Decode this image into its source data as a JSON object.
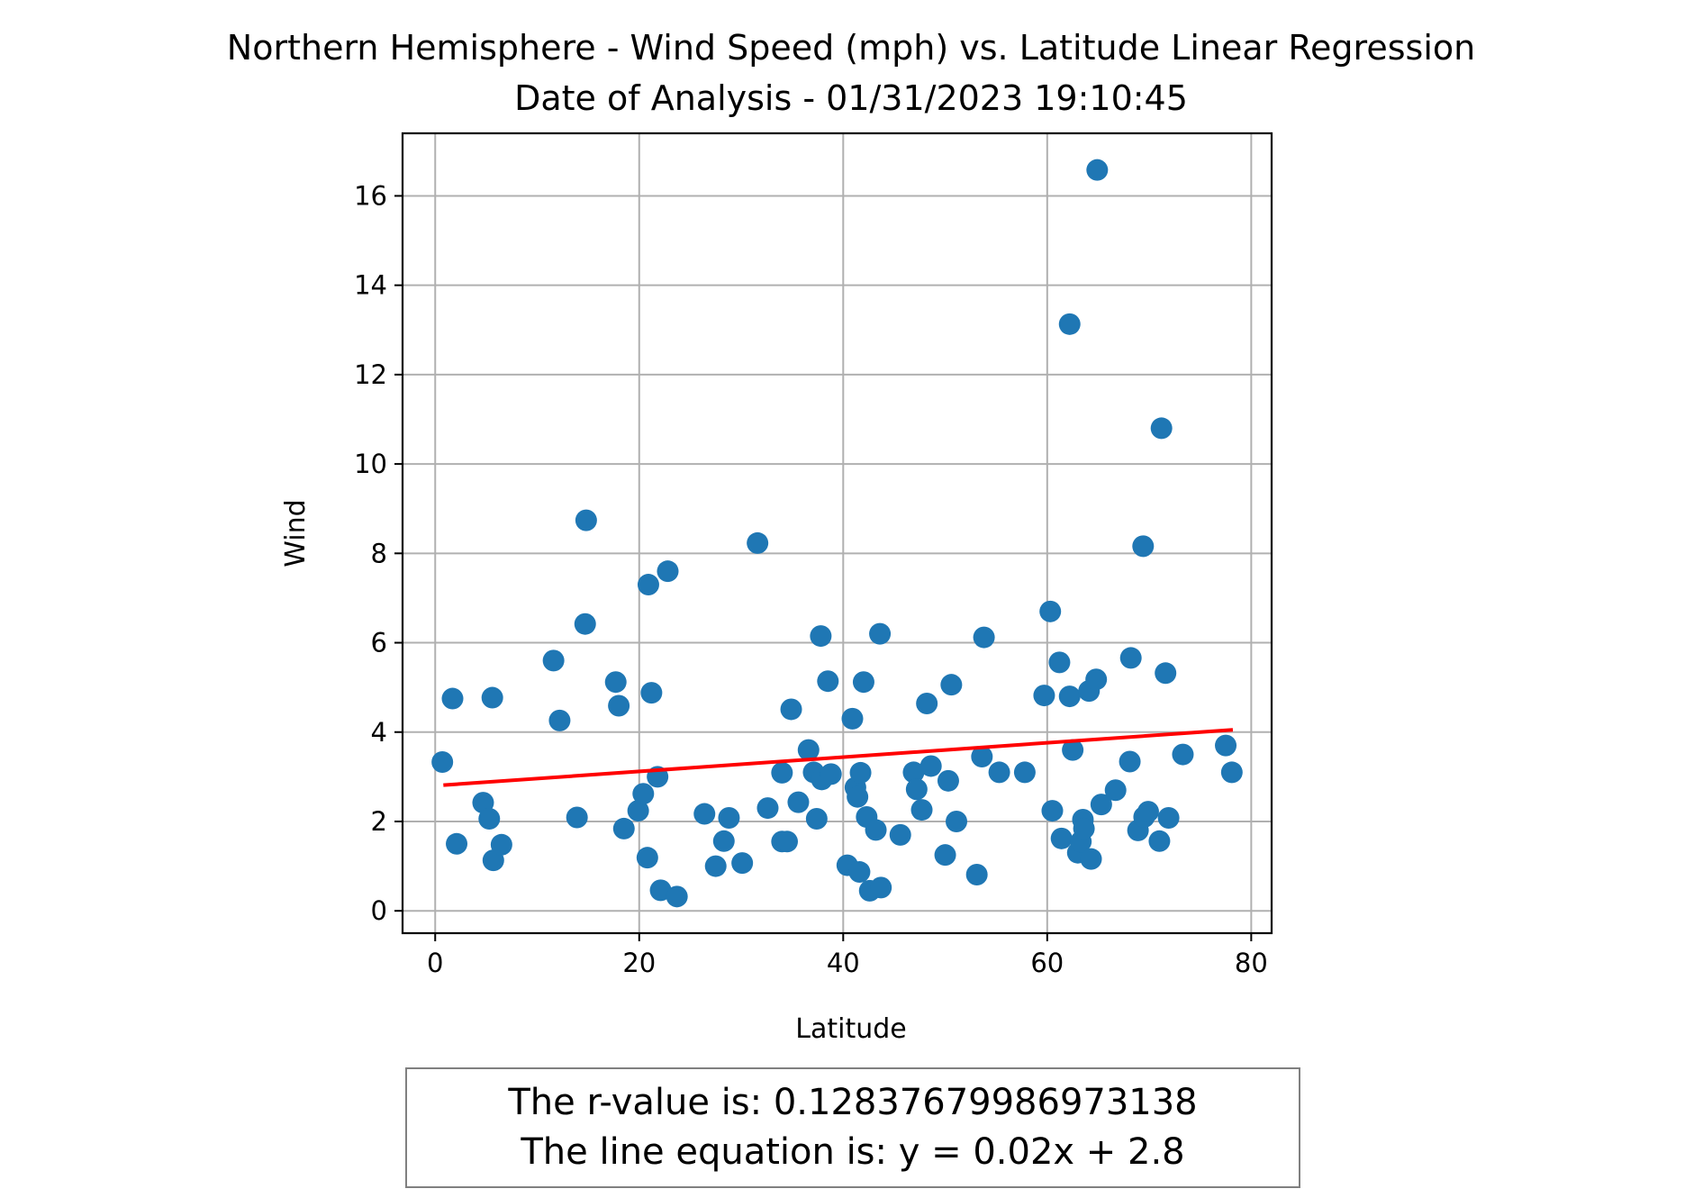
{
  "chart_data": {
    "type": "scatter",
    "title": "Northern Hemisphere - Wind Speed (mph) vs. Latitude Linear Regression",
    "subtitle": "Date of Analysis - 01/31/2023 19:10:45",
    "xlabel": "Latitude",
    "ylabel": "Wind",
    "xlim": [
      -3.2,
      82
    ],
    "ylim": [
      -0.5,
      17.4
    ],
    "xticks": [
      0,
      20,
      40,
      60,
      80
    ],
    "yticks": [
      0,
      2,
      4,
      6,
      8,
      10,
      12,
      14,
      16
    ],
    "grid": true,
    "marker_color": "#1f77b4",
    "regression_color": "#ff0000",
    "regression": {
      "slope": 0.016,
      "intercept": 2.8,
      "x_range": [
        0.8,
        78.2
      ]
    },
    "annotations": [
      "The r-value is: 0.12837679986973138",
      "The line equation is: y = 0.02x + 2.8"
    ],
    "points": [
      [
        0.7,
        3.33
      ],
      [
        1.7,
        4.75
      ],
      [
        2.1,
        1.5
      ],
      [
        4.7,
        2.42
      ],
      [
        5.3,
        2.06
      ],
      [
        5.6,
        4.77
      ],
      [
        5.7,
        1.13
      ],
      [
        6.5,
        1.48
      ],
      [
        11.6,
        5.6
      ],
      [
        12.2,
        4.26
      ],
      [
        13.9,
        2.09
      ],
      [
        14.7,
        6.42
      ],
      [
        14.8,
        8.74
      ],
      [
        17.7,
        5.12
      ],
      [
        18.0,
        4.59
      ],
      [
        18.5,
        1.84
      ],
      [
        19.9,
        2.24
      ],
      [
        20.4,
        2.62
      ],
      [
        20.8,
        1.19
      ],
      [
        20.9,
        7.3
      ],
      [
        21.2,
        4.88
      ],
      [
        21.8,
        3.0
      ],
      [
        22.1,
        0.46
      ],
      [
        22.8,
        7.6
      ],
      [
        23.7,
        0.32
      ],
      [
        26.4,
        2.17
      ],
      [
        27.5,
        1.0
      ],
      [
        28.3,
        1.56
      ],
      [
        28.8,
        2.08
      ],
      [
        30.1,
        1.07
      ],
      [
        31.6,
        8.23
      ],
      [
        32.6,
        2.3
      ],
      [
        34.0,
        1.55
      ],
      [
        34.0,
        3.09
      ],
      [
        34.5,
        1.55
      ],
      [
        34.9,
        4.51
      ],
      [
        35.6,
        2.43
      ],
      [
        36.6,
        3.6
      ],
      [
        37.1,
        3.1
      ],
      [
        37.4,
        2.06
      ],
      [
        37.8,
        6.15
      ],
      [
        37.9,
        2.94
      ],
      [
        38.5,
        5.14
      ],
      [
        38.8,
        3.06
      ],
      [
        40.4,
        1.02
      ],
      [
        40.9,
        4.3
      ],
      [
        41.2,
        2.76
      ],
      [
        41.4,
        2.55
      ],
      [
        41.6,
        0.87
      ],
      [
        41.7,
        3.09
      ],
      [
        42.0,
        5.12
      ],
      [
        42.3,
        2.1
      ],
      [
        42.6,
        0.45
      ],
      [
        43.2,
        1.81
      ],
      [
        43.6,
        6.2
      ],
      [
        43.7,
        0.52
      ],
      [
        45.6,
        1.7
      ],
      [
        46.9,
        3.1
      ],
      [
        47.2,
        2.72
      ],
      [
        47.7,
        2.26
      ],
      [
        48.2,
        4.64
      ],
      [
        48.6,
        3.24
      ],
      [
        50.0,
        1.25
      ],
      [
        50.3,
        2.91
      ],
      [
        50.6,
        5.06
      ],
      [
        51.1,
        2.0
      ],
      [
        53.1,
        0.81
      ],
      [
        53.6,
        3.45
      ],
      [
        53.8,
        6.12
      ],
      [
        55.3,
        3.1
      ],
      [
        57.8,
        3.1
      ],
      [
        59.7,
        4.82
      ],
      [
        60.3,
        6.7
      ],
      [
        60.5,
        2.24
      ],
      [
        61.2,
        5.56
      ],
      [
        61.4,
        1.62
      ],
      [
        62.2,
        4.8
      ],
      [
        62.2,
        13.13
      ],
      [
        62.5,
        3.6
      ],
      [
        63.0,
        1.3
      ],
      [
        63.3,
        1.55
      ],
      [
        63.5,
        2.04
      ],
      [
        63.6,
        1.84
      ],
      [
        64.1,
        4.92
      ],
      [
        64.3,
        1.16
      ],
      [
        64.8,
        5.18
      ],
      [
        64.9,
        16.58
      ],
      [
        65.3,
        2.38
      ],
      [
        66.7,
        2.7
      ],
      [
        68.1,
        3.34
      ],
      [
        68.2,
        5.66
      ],
      [
        68.9,
        1.8
      ],
      [
        69.4,
        8.16
      ],
      [
        69.5,
        2.1
      ],
      [
        69.9,
        2.22
      ],
      [
        71.0,
        1.56
      ],
      [
        71.2,
        10.8
      ],
      [
        71.6,
        5.32
      ],
      [
        71.9,
        2.08
      ],
      [
        73.3,
        3.5
      ],
      [
        77.5,
        3.7
      ],
      [
        78.1,
        3.1
      ]
    ]
  }
}
